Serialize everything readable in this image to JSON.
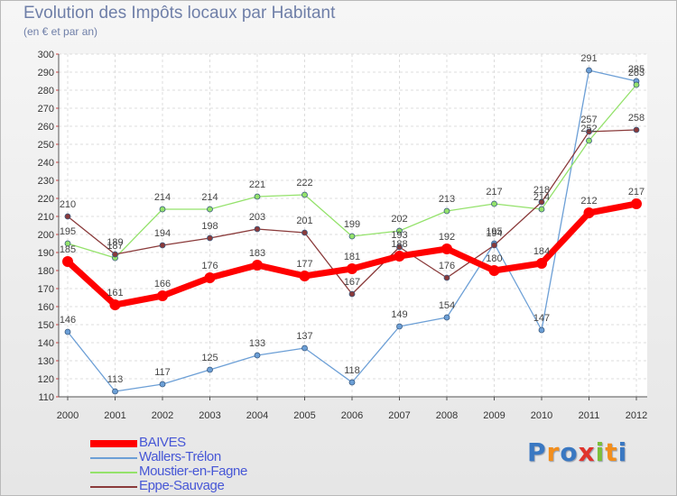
{
  "title": "Evolution des Impôts locaux par Habitant",
  "subtitle": "(en € et par an)",
  "logo": {
    "letters": [
      {
        "ch": "P",
        "color": "#3a78c2"
      },
      {
        "ch": "r",
        "color": "#f28e1c"
      },
      {
        "ch": "o",
        "color": "#3a78c2"
      },
      {
        "ch": "x",
        "color": "#e0342c"
      },
      {
        "ch": "i",
        "color": "#7bbf3a"
      },
      {
        "ch": "t",
        "color": "#f28e1c"
      },
      {
        "ch": "i",
        "color": "#3a78c2"
      }
    ]
  },
  "chart_data": {
    "type": "line",
    "x": [
      "2000",
      "2001",
      "2002",
      "2003",
      "2004",
      "2005",
      "2006",
      "2007",
      "2008",
      "2009",
      "2010",
      "2011",
      "2012"
    ],
    "ylim": [
      110,
      300
    ],
    "yticks": [
      110,
      120,
      130,
      140,
      150,
      160,
      170,
      180,
      190,
      200,
      210,
      220,
      230,
      240,
      250,
      260,
      270,
      280,
      290,
      300
    ],
    "grid": true,
    "legend_position": "bottom-left",
    "series": [
      {
        "name": "BAIVES",
        "color": "#ff0000",
        "width": 7,
        "marker": 6,
        "values": [
          185,
          161,
          166,
          176,
          183,
          177,
          181,
          188,
          192,
          180,
          184,
          212,
          217
        ]
      },
      {
        "name": "Wallers-Trélon",
        "color": "#6c9fd6",
        "width": 1.3,
        "marker": 3,
        "values": [
          146,
          113,
          117,
          125,
          133,
          137,
          118,
          149,
          154,
          195,
          147,
          291,
          285
        ]
      },
      {
        "name": "Moustier-en-Fagne",
        "color": "#94e26b",
        "width": 1.3,
        "marker": 3,
        "values": [
          195,
          187,
          214,
          214,
          221,
          222,
          199,
          202,
          213,
          217,
          214,
          252,
          283
        ]
      },
      {
        "name": "Eppe-Sauvage",
        "color": "#8a3a3a",
        "width": 1.3,
        "marker": 3,
        "values": [
          210,
          189,
          194,
          198,
          203,
          201,
          167,
          193,
          176,
          194,
          218,
          257,
          258
        ]
      }
    ]
  }
}
